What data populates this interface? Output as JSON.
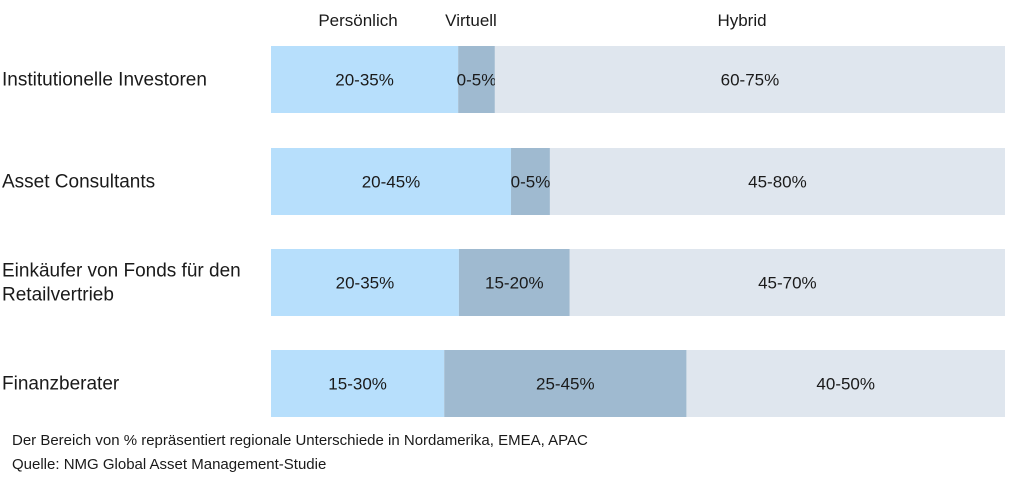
{
  "chart_data": {
    "type": "bar",
    "orientation": "horizontal",
    "stacked": true,
    "series": [
      {
        "name": "Persönlich",
        "color": "#b7dffc"
      },
      {
        "name": "Virtuell",
        "color": "#9fbad0"
      },
      {
        "name": "Hybrid",
        "color": "#dfe6ee"
      }
    ],
    "categories": [
      {
        "label": [
          "Institutionelle Investoren"
        ],
        "values": [
          25.5,
          5,
          69.5
        ],
        "data_labels": [
          "20-35%",
          "0-5%",
          "60-75%"
        ]
      },
      {
        "label": [
          "Asset Consultants"
        ],
        "values": [
          32.7,
          5.3,
          62
        ],
        "data_labels": [
          "20-45%",
          "0-5%",
          "45-80%"
        ]
      },
      {
        "label": [
          "Einkäufer von Fonds für den",
          "Retailvertrieb"
        ],
        "values": [
          25.6,
          15.1,
          59.3
        ],
        "data_labels": [
          "20-35%",
          "15-20%",
          "45-70%"
        ]
      },
      {
        "label": [
          "Finanzberater"
        ],
        "values": [
          23.6,
          33,
          43.4
        ],
        "data_labels": [
          "15-30%",
          "25-45%",
          "40-50%"
        ]
      }
    ],
    "xlim": [
      0,
      100
    ],
    "grid": false,
    "legend": "top"
  },
  "footnotes": {
    "note": "Der Bereich von % repräsentiert regionale Unterschiede in Nordamerika, EMEA, APAC",
    "source": "Quelle: NMG Global Asset Management-Studie"
  }
}
